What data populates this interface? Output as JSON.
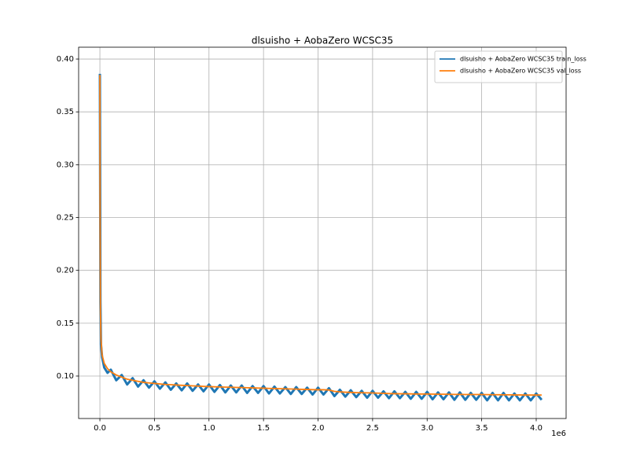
{
  "chart_data": {
    "type": "line",
    "title": "dlsuisho + AobaZero WCSC35",
    "x_offset_label": "1e6",
    "x": [
      0,
      2000,
      5000,
      10000,
      20000,
      40000,
      70000,
      100000,
      150000,
      200000,
      250000,
      300000,
      350000,
      400000,
      450000,
      500000,
      550000,
      600000,
      650000,
      700000,
      750000,
      800000,
      850000,
      900000,
      950000,
      1000000,
      1050000,
      1100000,
      1150000,
      1200000,
      1250000,
      1300000,
      1350000,
      1400000,
      1450000,
      1500000,
      1550000,
      1600000,
      1650000,
      1700000,
      1750000,
      1800000,
      1850000,
      1900000,
      1950000,
      2000000,
      2050000,
      2100000,
      2150000,
      2200000,
      2250000,
      2300000,
      2350000,
      2400000,
      2450000,
      2500000,
      2550000,
      2600000,
      2650000,
      2700000,
      2750000,
      2800000,
      2850000,
      2900000,
      2950000,
      3000000,
      3050000,
      3100000,
      3150000,
      3200000,
      3250000,
      3300000,
      3350000,
      3400000,
      3450000,
      3500000,
      3550000,
      3600000,
      3650000,
      3700000,
      3750000,
      3800000,
      3850000,
      3900000,
      3950000,
      4000000,
      4050000
    ],
    "series": [
      {
        "name": "dlsuisho + AobaZero WCSC35 train_loss",
        "color": "#1f77b4",
        "values": [
          0.386,
          0.3,
          0.17,
          0.13,
          0.118,
          0.108,
          0.103,
          0.106,
          0.096,
          0.101,
          0.092,
          0.098,
          0.09,
          0.096,
          0.089,
          0.095,
          0.088,
          0.094,
          0.087,
          0.093,
          0.0865,
          0.093,
          0.086,
          0.092,
          0.0855,
          0.092,
          0.085,
          0.0915,
          0.0845,
          0.091,
          0.0845,
          0.091,
          0.084,
          0.0905,
          0.084,
          0.0905,
          0.0835,
          0.09,
          0.0835,
          0.0895,
          0.083,
          0.0895,
          0.083,
          0.089,
          0.0825,
          0.089,
          0.0825,
          0.0885,
          0.081,
          0.087,
          0.0805,
          0.0865,
          0.08,
          0.086,
          0.0795,
          0.086,
          0.0795,
          0.0855,
          0.079,
          0.0855,
          0.079,
          0.085,
          0.0785,
          0.085,
          0.0785,
          0.085,
          0.078,
          0.0845,
          0.078,
          0.0845,
          0.0775,
          0.0845,
          0.0775,
          0.084,
          0.0775,
          0.084,
          0.077,
          0.084,
          0.077,
          0.084,
          0.077,
          0.0835,
          0.077,
          0.0835,
          0.077,
          0.0835,
          0.0775
        ]
      },
      {
        "name": "dlsuisho + AobaZero WCSC35 val_loss",
        "color": "#ff7f0e",
        "values": [
          0.385,
          0.25,
          0.16,
          0.135,
          0.12,
          0.112,
          0.107,
          0.104,
          0.101,
          0.099,
          0.097,
          0.096,
          0.095,
          0.094,
          0.0935,
          0.093,
          0.0925,
          0.092,
          0.0918,
          0.0915,
          0.0912,
          0.091,
          0.0907,
          0.0905,
          0.0902,
          0.09,
          0.0898,
          0.0897,
          0.0895,
          0.0894,
          0.0892,
          0.0891,
          0.0889,
          0.0888,
          0.0886,
          0.0885,
          0.0883,
          0.0882,
          0.088,
          0.0879,
          0.0877,
          0.0876,
          0.0874,
          0.0873,
          0.0871,
          0.087,
          0.087,
          0.0868,
          0.0855,
          0.085,
          0.0847,
          0.0845,
          0.0843,
          0.0842,
          0.0841,
          0.084,
          0.0838,
          0.0836,
          0.0834,
          0.0833,
          0.0832,
          0.0832,
          0.0831,
          0.083,
          0.083,
          0.083,
          0.0829,
          0.0828,
          0.0828,
          0.0827,
          0.0826,
          0.0826,
          0.0825,
          0.0825,
          0.0825,
          0.0825,
          0.0824,
          0.0823,
          0.0823,
          0.0822,
          0.0822,
          0.0821,
          0.0821,
          0.082,
          0.082,
          0.082,
          0.082
        ]
      }
    ],
    "xlim": [
      -195000,
      4274000
    ],
    "xticks": [
      {
        "value": 0,
        "label": "0.0"
      },
      {
        "value": 500000,
        "label": "0.5"
      },
      {
        "value": 1000000,
        "label": "1.0"
      },
      {
        "value": 1500000,
        "label": "1.5"
      },
      {
        "value": 2000000,
        "label": "2.0"
      },
      {
        "value": 2500000,
        "label": "2.5"
      },
      {
        "value": 3000000,
        "label": "3.0"
      },
      {
        "value": 3500000,
        "label": "3.5"
      },
      {
        "value": 4000000,
        "label": "4.0"
      }
    ],
    "ylim": [
      0.0598,
      0.4112
    ],
    "yticks": [
      {
        "value": 0.1,
        "label": "0.10"
      },
      0.15,
      {
        "value": 0.2,
        "label": "0.20"
      },
      0.25,
      {
        "value": 0.3,
        "label": "0.30"
      },
      0.35,
      {
        "value": 0.4,
        "label": "0.40"
      }
    ],
    "grid": true,
    "legend": "upper right"
  }
}
